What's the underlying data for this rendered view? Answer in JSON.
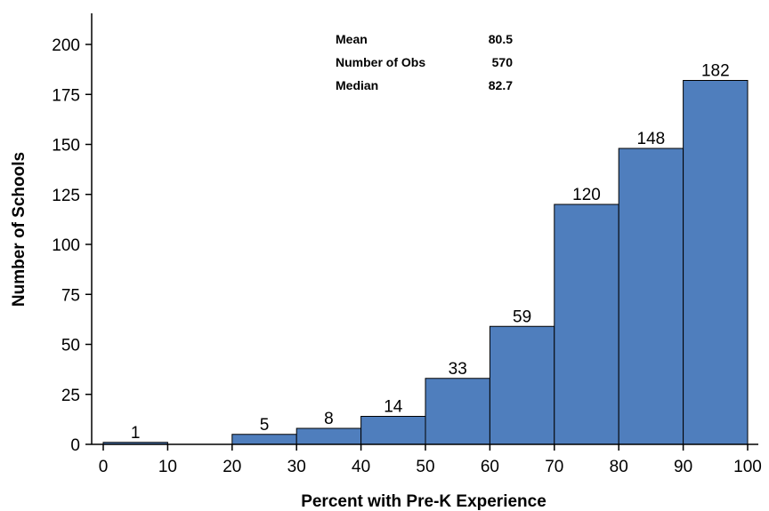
{
  "chart_data": {
    "type": "bar",
    "title": "",
    "xlabel": "Percent with Pre-K Experience",
    "ylabel": "Number of Schools",
    "bins": [
      {
        "start": 0,
        "end": 10,
        "value": 1,
        "label": "1"
      },
      {
        "start": 10,
        "end": 20,
        "value": 0,
        "label": ""
      },
      {
        "start": 20,
        "end": 30,
        "value": 5,
        "label": "5"
      },
      {
        "start": 30,
        "end": 40,
        "value": 8,
        "label": "8"
      },
      {
        "start": 40,
        "end": 50,
        "value": 14,
        "label": "14"
      },
      {
        "start": 50,
        "end": 60,
        "value": 33,
        "label": "33"
      },
      {
        "start": 60,
        "end": 70,
        "value": 59,
        "label": "59"
      },
      {
        "start": 70,
        "end": 80,
        "value": 120,
        "label": "120"
      },
      {
        "start": 80,
        "end": 90,
        "value": 148,
        "label": "148"
      },
      {
        "start": 90,
        "end": 100,
        "value": 182,
        "label": "182"
      }
    ],
    "xlim": [
      0,
      100
    ],
    "ylim": [
      0,
      200
    ],
    "xticks": [
      "0",
      "10",
      "20",
      "30",
      "40",
      "50",
      "60",
      "70",
      "80",
      "90",
      "100"
    ],
    "yticks": [
      "0",
      "25",
      "50",
      "75",
      "100",
      "125",
      "150",
      "175",
      "200"
    ],
    "stats": [
      {
        "label": "Mean",
        "value": "80.5"
      },
      {
        "label": "Number of Obs",
        "value": "570"
      },
      {
        "label": "Median",
        "value": "82.7"
      }
    ],
    "bar_color": "#4f7ebd",
    "grid": false
  }
}
